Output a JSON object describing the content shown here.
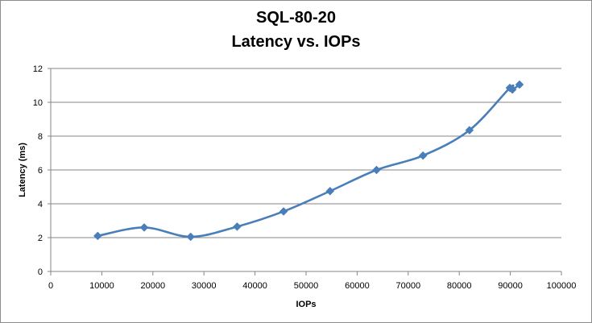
{
  "chart_data": {
    "type": "line",
    "title": "SQL-80-20",
    "subtitle": "Latency vs. IOPs",
    "xlabel": "IOPs",
    "ylabel": "Latency (ms)",
    "xlim": [
      0,
      100000
    ],
    "ylim": [
      0,
      12
    ],
    "xticks": [
      "0",
      "10000",
      "20000",
      "30000",
      "40000",
      "50000",
      "60000",
      "70000",
      "80000",
      "90000",
      "100000"
    ],
    "yticks": [
      "0",
      "2",
      "4",
      "6",
      "8",
      "10",
      "12"
    ],
    "grid": "horizontal",
    "legend": "none",
    "line_color": "#4a7ebb",
    "series": [
      {
        "x": [
          9200,
          18300,
          27400,
          36500,
          45600,
          54700,
          63800,
          72900,
          82000,
          89900,
          90400,
          91800
        ],
        "y": [
          2.1,
          2.6,
          2.05,
          2.65,
          3.55,
          4.75,
          6.0,
          6.85,
          8.35,
          10.85,
          10.75,
          11.05
        ]
      }
    ]
  }
}
